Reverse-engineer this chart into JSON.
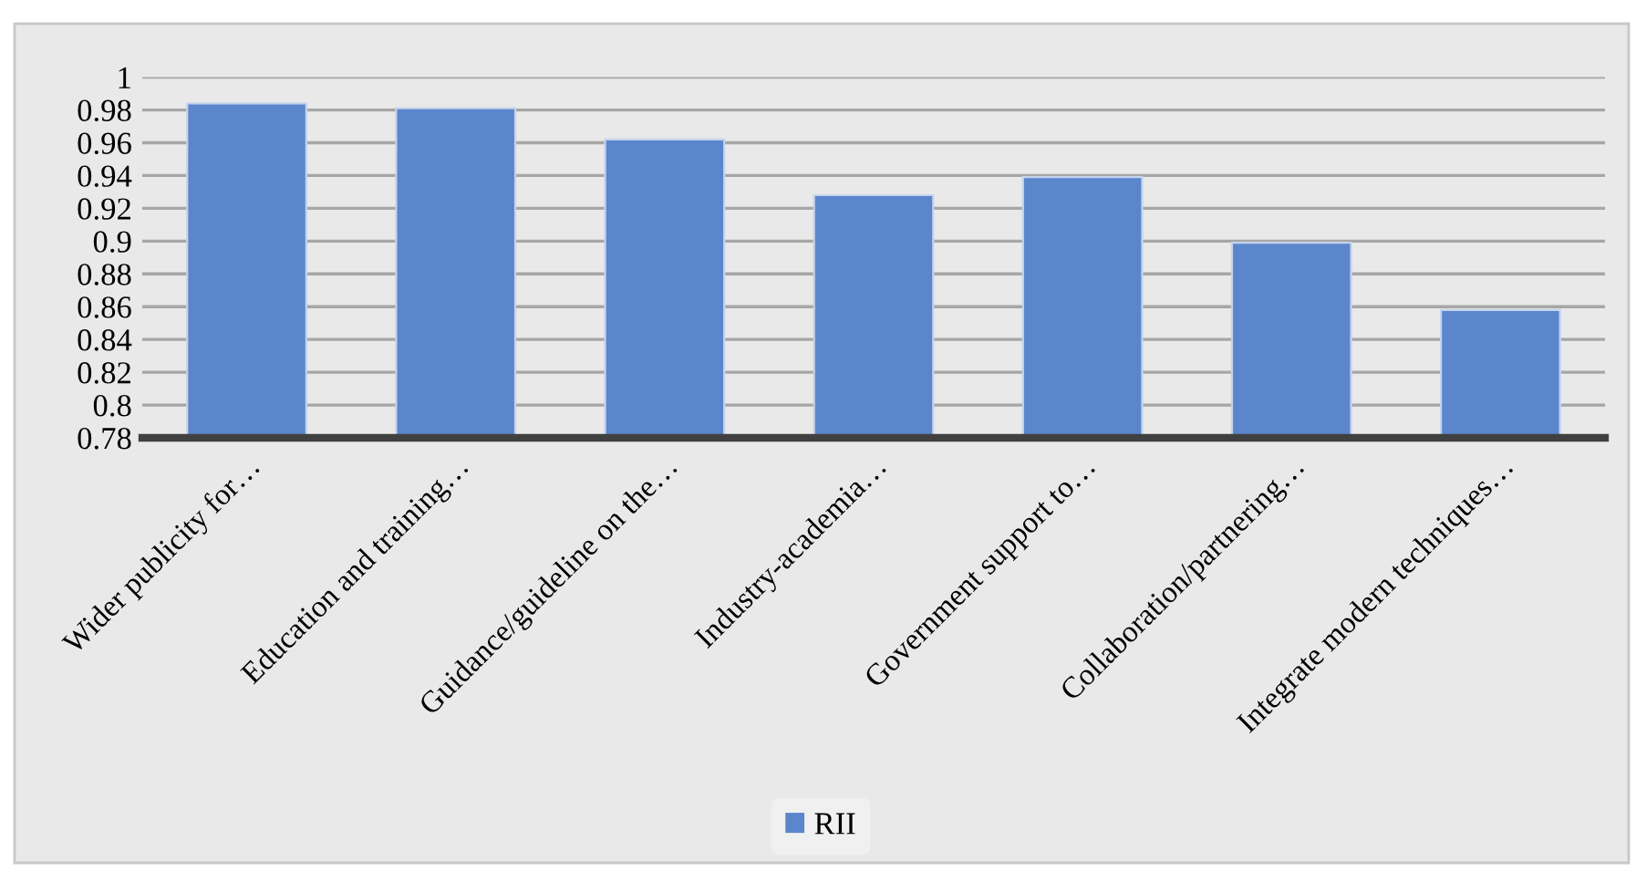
{
  "chart_data": {
    "type": "bar",
    "categories": [
      "Wider publicity for…",
      "Education and training…",
      "Guidance/guideline on the…",
      "Industry-academia…",
      "Government support to…",
      "Collaboration/partnering…",
      "Integrate modern techniques…"
    ],
    "series": [
      {
        "name": "RII",
        "color": "#5b86cc",
        "values": [
          0.984,
          0.981,
          0.962,
          0.928,
          0.939,
          0.899,
          0.858
        ]
      }
    ],
    "ylim": [
      0.78,
      1
    ],
    "yticks": [
      0.78,
      0.8,
      0.82,
      0.84,
      0.86,
      0.88,
      0.9,
      0.92,
      0.94,
      0.96,
      0.98,
      1
    ],
    "grid": "y",
    "legend": "bottom"
  }
}
